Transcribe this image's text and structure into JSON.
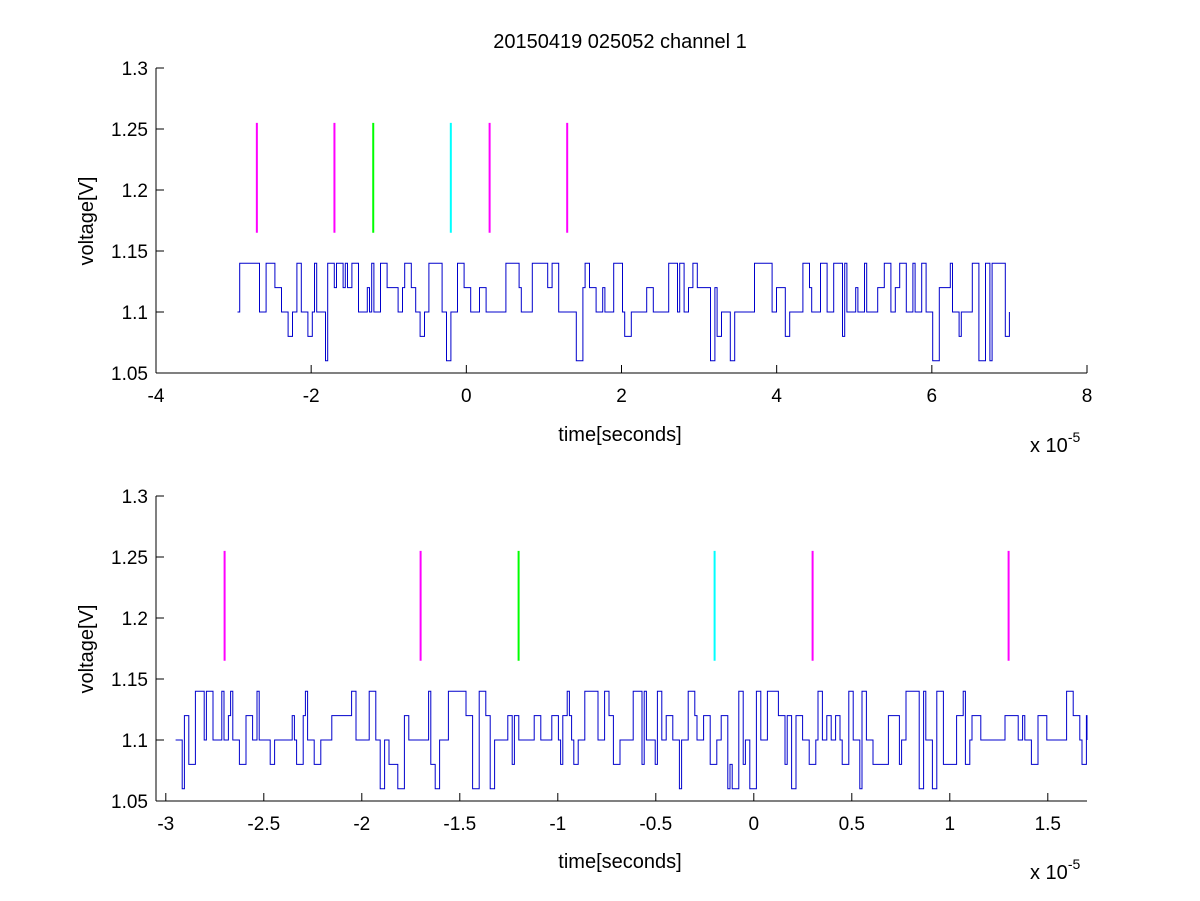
{
  "chart_data": [
    {
      "type": "line",
      "title": "20150419 025052 channel 1",
      "xlabel": "time[seconds]",
      "ylabel": "voltage[V]",
      "x_exponent": "x 10",
      "x_exponent_power": "-5",
      "xlim": [
        -4,
        8
      ],
      "ylim": [
        1.05,
        1.3
      ],
      "xticks": [
        -4,
        -2,
        0,
        2,
        4,
        6,
        8
      ],
      "xtick_labels": [
        "-4",
        "-2",
        "0",
        "2",
        "4",
        "6",
        "8"
      ],
      "yticks": [
        1.05,
        1.1,
        1.15,
        1.2,
        1.25,
        1.3
      ],
      "ytick_labels": [
        "1.05",
        "1.1",
        "1.15",
        "1.2",
        "1.25",
        "1.3"
      ],
      "grid": false,
      "series": [
        {
          "color": "#0000cc",
          "x_range": [
            -2.95,
            7.0
          ],
          "levels": [
            1.06,
            1.08,
            1.1,
            1.12,
            1.14
          ],
          "baseline": 1.1
        }
      ],
      "markers": [
        {
          "x": -2.7,
          "y_range": [
            1.165,
            1.255
          ],
          "color": "#ff00ff"
        },
        {
          "x": -1.7,
          "y_range": [
            1.165,
            1.255
          ],
          "color": "#ff00ff"
        },
        {
          "x": -1.2,
          "y_range": [
            1.165,
            1.255
          ],
          "color": "#00ff00"
        },
        {
          "x": -0.2,
          "y_range": [
            1.165,
            1.255
          ],
          "color": "#00ffff"
        },
        {
          "x": 0.3,
          "y_range": [
            1.165,
            1.255
          ],
          "color": "#ff00ff"
        },
        {
          "x": 1.3,
          "y_range": [
            1.165,
            1.255
          ],
          "color": "#ff00ff"
        }
      ]
    },
    {
      "type": "line",
      "title": "",
      "xlabel": "time[seconds]",
      "ylabel": "voltage[V]",
      "x_exponent": "x 10",
      "x_exponent_power": "-5",
      "xlim": [
        -3.05,
        1.7
      ],
      "ylim": [
        1.05,
        1.3
      ],
      "xticks": [
        -3,
        -2.5,
        -2,
        -1.5,
        -1,
        -0.5,
        0,
        0.5,
        1,
        1.5
      ],
      "xtick_labels": [
        "-3",
        "-2.5",
        "-2",
        "-1.5",
        "-1",
        "-0.5",
        "0",
        "0.5",
        "1",
        "1.5"
      ],
      "yticks": [
        1.05,
        1.1,
        1.15,
        1.2,
        1.25,
        1.3
      ],
      "ytick_labels": [
        "1.05",
        "1.1",
        "1.15",
        "1.2",
        "1.25",
        "1.3"
      ],
      "grid": false,
      "series": [
        {
          "color": "#0000cc",
          "x_range": [
            -2.95,
            1.7
          ],
          "levels": [
            1.06,
            1.08,
            1.1,
            1.12,
            1.14
          ],
          "baseline": 1.1
        }
      ],
      "markers": [
        {
          "x": -2.7,
          "y_range": [
            1.165,
            1.255
          ],
          "color": "#ff00ff"
        },
        {
          "x": -1.7,
          "y_range": [
            1.165,
            1.255
          ],
          "color": "#ff00ff"
        },
        {
          "x": -1.2,
          "y_range": [
            1.165,
            1.255
          ],
          "color": "#00ff00"
        },
        {
          "x": -0.2,
          "y_range": [
            1.165,
            1.255
          ],
          "color": "#00ffff"
        },
        {
          "x": 0.3,
          "y_range": [
            1.165,
            1.255
          ],
          "color": "#ff00ff"
        },
        {
          "x": 1.3,
          "y_range": [
            1.165,
            1.255
          ],
          "color": "#ff00ff"
        }
      ]
    }
  ]
}
